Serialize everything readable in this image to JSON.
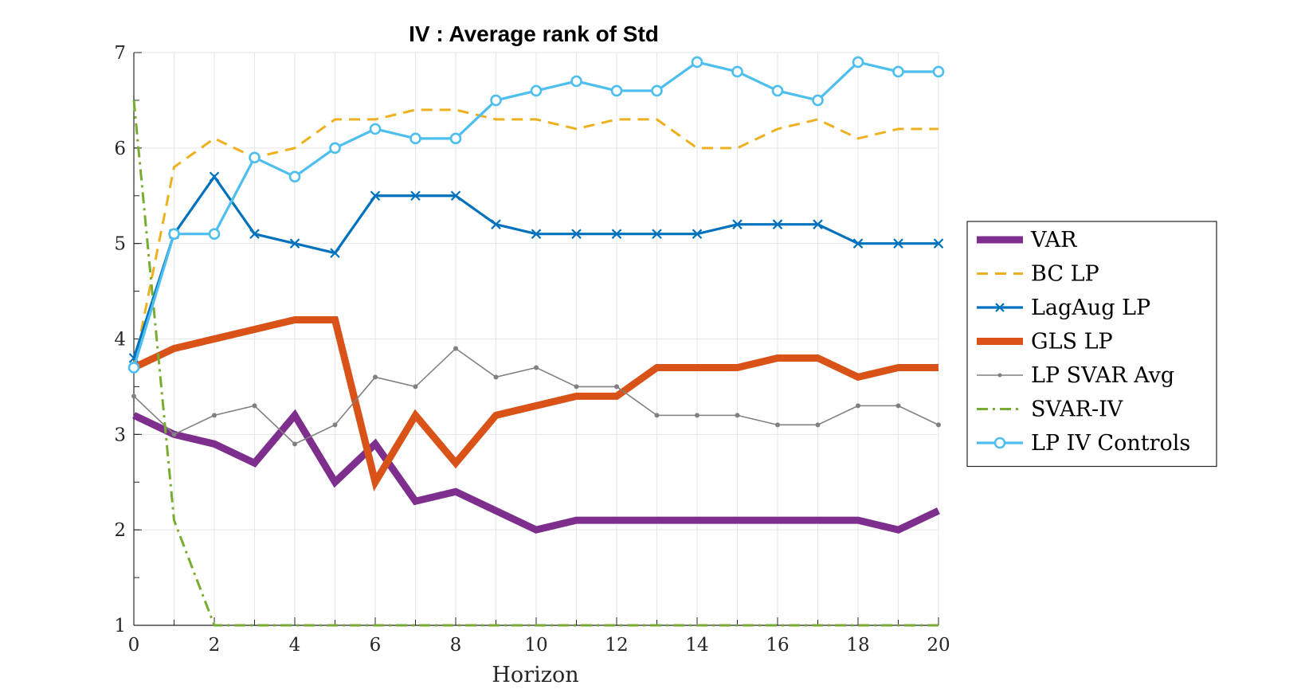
{
  "chart_data": {
    "type": "line",
    "title": "IV : Average rank of Std",
    "xlabel": "Horizon",
    "ylabel": "",
    "xlim": [
      0,
      20
    ],
    "ylim": [
      1,
      7
    ],
    "grid": true,
    "legend_position": "right",
    "x_ticks": [
      "0",
      "2",
      "4",
      "6",
      "8",
      "10",
      "12",
      "14",
      "16",
      "18",
      "20"
    ],
    "y_ticks": [
      "1",
      "2",
      "3",
      "4",
      "5",
      "6",
      "7"
    ],
    "x": [
      0,
      1,
      2,
      3,
      4,
      5,
      6,
      7,
      8,
      9,
      10,
      11,
      12,
      13,
      14,
      15,
      16,
      17,
      18,
      19,
      20
    ],
    "series": [
      {
        "name": "VAR",
        "color": "#7E2F8E",
        "style": "solid",
        "marker": "none",
        "values": [
          3.2,
          3.0,
          2.9,
          2.7,
          3.2,
          2.5,
          2.9,
          2.3,
          2.4,
          2.2,
          2.0,
          2.1,
          2.1,
          2.1,
          2.1,
          2.1,
          2.1,
          2.1,
          2.1,
          2.0,
          2.2
        ]
      },
      {
        "name": "BC LP",
        "color": "#EDB120",
        "style": "dashed",
        "marker": "none",
        "values": [
          3.7,
          5.8,
          6.1,
          5.9,
          6.0,
          6.3,
          6.3,
          6.4,
          6.4,
          6.3,
          6.3,
          6.2,
          6.3,
          6.3,
          6.0,
          6.0,
          6.2,
          6.3,
          6.1,
          6.2,
          6.2
        ]
      },
      {
        "name": "LagAug LP",
        "color": "#0072BD",
        "style": "solid",
        "marker": "x",
        "values": [
          3.8,
          5.1,
          5.7,
          5.1,
          5.0,
          4.9,
          5.5,
          5.5,
          5.5,
          5.2,
          5.1,
          5.1,
          5.1,
          5.1,
          5.1,
          5.2,
          5.2,
          5.2,
          5.0,
          5.0,
          5.0
        ]
      },
      {
        "name": "GLS LP",
        "color": "#D95319",
        "style": "solid",
        "marker": "none",
        "values": [
          3.7,
          3.9,
          4.0,
          4.1,
          4.2,
          4.2,
          2.5,
          3.2,
          2.7,
          3.2,
          3.3,
          3.4,
          3.4,
          3.7,
          3.7,
          3.7,
          3.8,
          3.8,
          3.6,
          3.7,
          3.7
        ]
      },
      {
        "name": "LP SVAR Avg",
        "color": "#808080",
        "style": "solid",
        "marker": "dot",
        "values": [
          3.4,
          3.0,
          3.2,
          3.3,
          2.9,
          3.1,
          3.6,
          3.5,
          3.9,
          3.6,
          3.7,
          3.5,
          3.5,
          3.2,
          3.2,
          3.2,
          3.1,
          3.1,
          3.3,
          3.3,
          3.1
        ]
      },
      {
        "name": "SVAR-IV",
        "color": "#77AC30",
        "style": "dashdot",
        "marker": "none",
        "values": [
          6.5,
          2.1,
          1.0,
          1.0,
          1.0,
          1.0,
          1.0,
          1.0,
          1.0,
          1.0,
          1.0,
          1.0,
          1.0,
          1.0,
          1.0,
          1.0,
          1.0,
          1.0,
          1.0,
          1.0,
          1.0
        ]
      },
      {
        "name": "LP IV Controls",
        "color": "#4DBEEE",
        "style": "solid",
        "marker": "circle",
        "values": [
          3.7,
          5.1,
          5.1,
          5.9,
          5.7,
          6.0,
          6.2,
          6.1,
          6.1,
          6.5,
          6.6,
          6.7,
          6.6,
          6.6,
          6.9,
          6.8,
          6.6,
          6.5,
          6.9,
          6.8,
          6.8
        ]
      }
    ]
  }
}
